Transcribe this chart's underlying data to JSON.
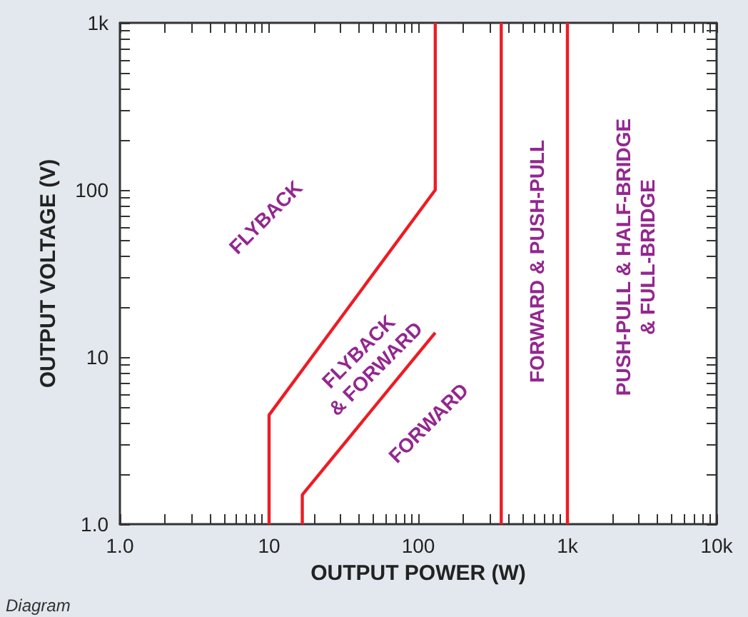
{
  "chart_data": {
    "type": "line",
    "xlabel": "OUTPUT POWER (W)",
    "ylabel": "OUTPUT VOLTAGE (V)",
    "log": "xy",
    "grid": false,
    "marker": "none",
    "line_style": "solid",
    "xlim": [
      1,
      10000
    ],
    "ylim": [
      1,
      1000
    ],
    "xticks": [
      {
        "value": 1,
        "label": "1.0"
      },
      {
        "value": 2,
        "label": null
      },
      {
        "value": 3,
        "label": null
      },
      {
        "value": 4,
        "label": null
      },
      {
        "value": 5,
        "label": null
      },
      {
        "value": 6,
        "label": null
      },
      {
        "value": 7,
        "label": null
      },
      {
        "value": 8,
        "label": null
      },
      {
        "value": 9,
        "label": null
      },
      10,
      {
        "value": 20,
        "label": null
      },
      {
        "value": 30,
        "label": null
      },
      {
        "value": 40,
        "label": null
      },
      {
        "value": 50,
        "label": null
      },
      {
        "value": 60,
        "label": null
      },
      {
        "value": 70,
        "label": null
      },
      {
        "value": 80,
        "label": null
      },
      {
        "value": 90,
        "label": null
      },
      100,
      {
        "value": 200,
        "label": null
      },
      {
        "value": 300,
        "label": null
      },
      {
        "value": 400,
        "label": null
      },
      {
        "value": 500,
        "label": null
      },
      {
        "value": 600,
        "label": null
      },
      {
        "value": 700,
        "label": null
      },
      {
        "value": 800,
        "label": null
      },
      {
        "value": 900,
        "label": null
      },
      {
        "value": 1000,
        "label": "1k"
      },
      {
        "value": 2000,
        "label": null
      },
      {
        "value": 3000,
        "label": null
      },
      {
        "value": 4000,
        "label": null
      },
      {
        "value": 5000,
        "label": null
      },
      {
        "value": 6000,
        "label": null
      },
      {
        "value": 7000,
        "label": null
      },
      {
        "value": 8000,
        "label": null
      },
      {
        "value": 9000,
        "label": null
      },
      {
        "value": 10000,
        "label": "10k"
      }
    ],
    "yticks": [
      {
        "value": 1,
        "label": "1.0"
      },
      {
        "value": 2,
        "label": null
      },
      {
        "value": 3,
        "label": null
      },
      {
        "value": 4,
        "label": null
      },
      {
        "value": 5,
        "label": null
      },
      {
        "value": 6,
        "label": null
      },
      {
        "value": 7,
        "label": null
      },
      {
        "value": 8,
        "label": null
      },
      {
        "value": 9,
        "label": null
      },
      10,
      {
        "value": 20,
        "label": null
      },
      {
        "value": 30,
        "label": null
      },
      {
        "value": 40,
        "label": null
      },
      {
        "value": 50,
        "label": null
      },
      {
        "value": 60,
        "label": null
      },
      {
        "value": 70,
        "label": null
      },
      {
        "value": 80,
        "label": null
      },
      {
        "value": 90,
        "label": null
      },
      100,
      {
        "value": 200,
        "label": null
      },
      {
        "value": 300,
        "label": null
      },
      {
        "value": 400,
        "label": null
      },
      {
        "value": 500,
        "label": null
      },
      {
        "value": 600,
        "label": null
      },
      {
        "value": 700,
        "label": null
      },
      {
        "value": 800,
        "label": null
      },
      {
        "value": 900,
        "label": null
      },
      {
        "value": 1000,
        "label": "1k"
      }
    ],
    "series": [
      {
        "color": "#ed1c24",
        "x": [
          10,
          10,
          130,
          130
        ],
        "values": [
          1,
          4.5,
          100,
          1000
        ]
      },
      {
        "color": "#ed1c24",
        "x": [
          16.7,
          16.7,
          130
        ],
        "values": [
          1,
          1.5,
          14
        ]
      },
      {
        "color": "#ed1c24",
        "x": [
          360,
          360
        ],
        "values": [
          1,
          1000
        ]
      },
      {
        "color": "#ed1c24",
        "x": [
          1000,
          1000
        ],
        "values": [
          1,
          1000
        ]
      }
    ],
    "annotations": [
      "FLYBACK",
      "FLYBACK\n& FORWARD",
      "FORWARD",
      "FORWARD & PUSH-PULL",
      "PUSH-PULL & HALF-BRIDGE\n& FULL-BRIDGE",
      "Diagram"
    ]
  }
}
